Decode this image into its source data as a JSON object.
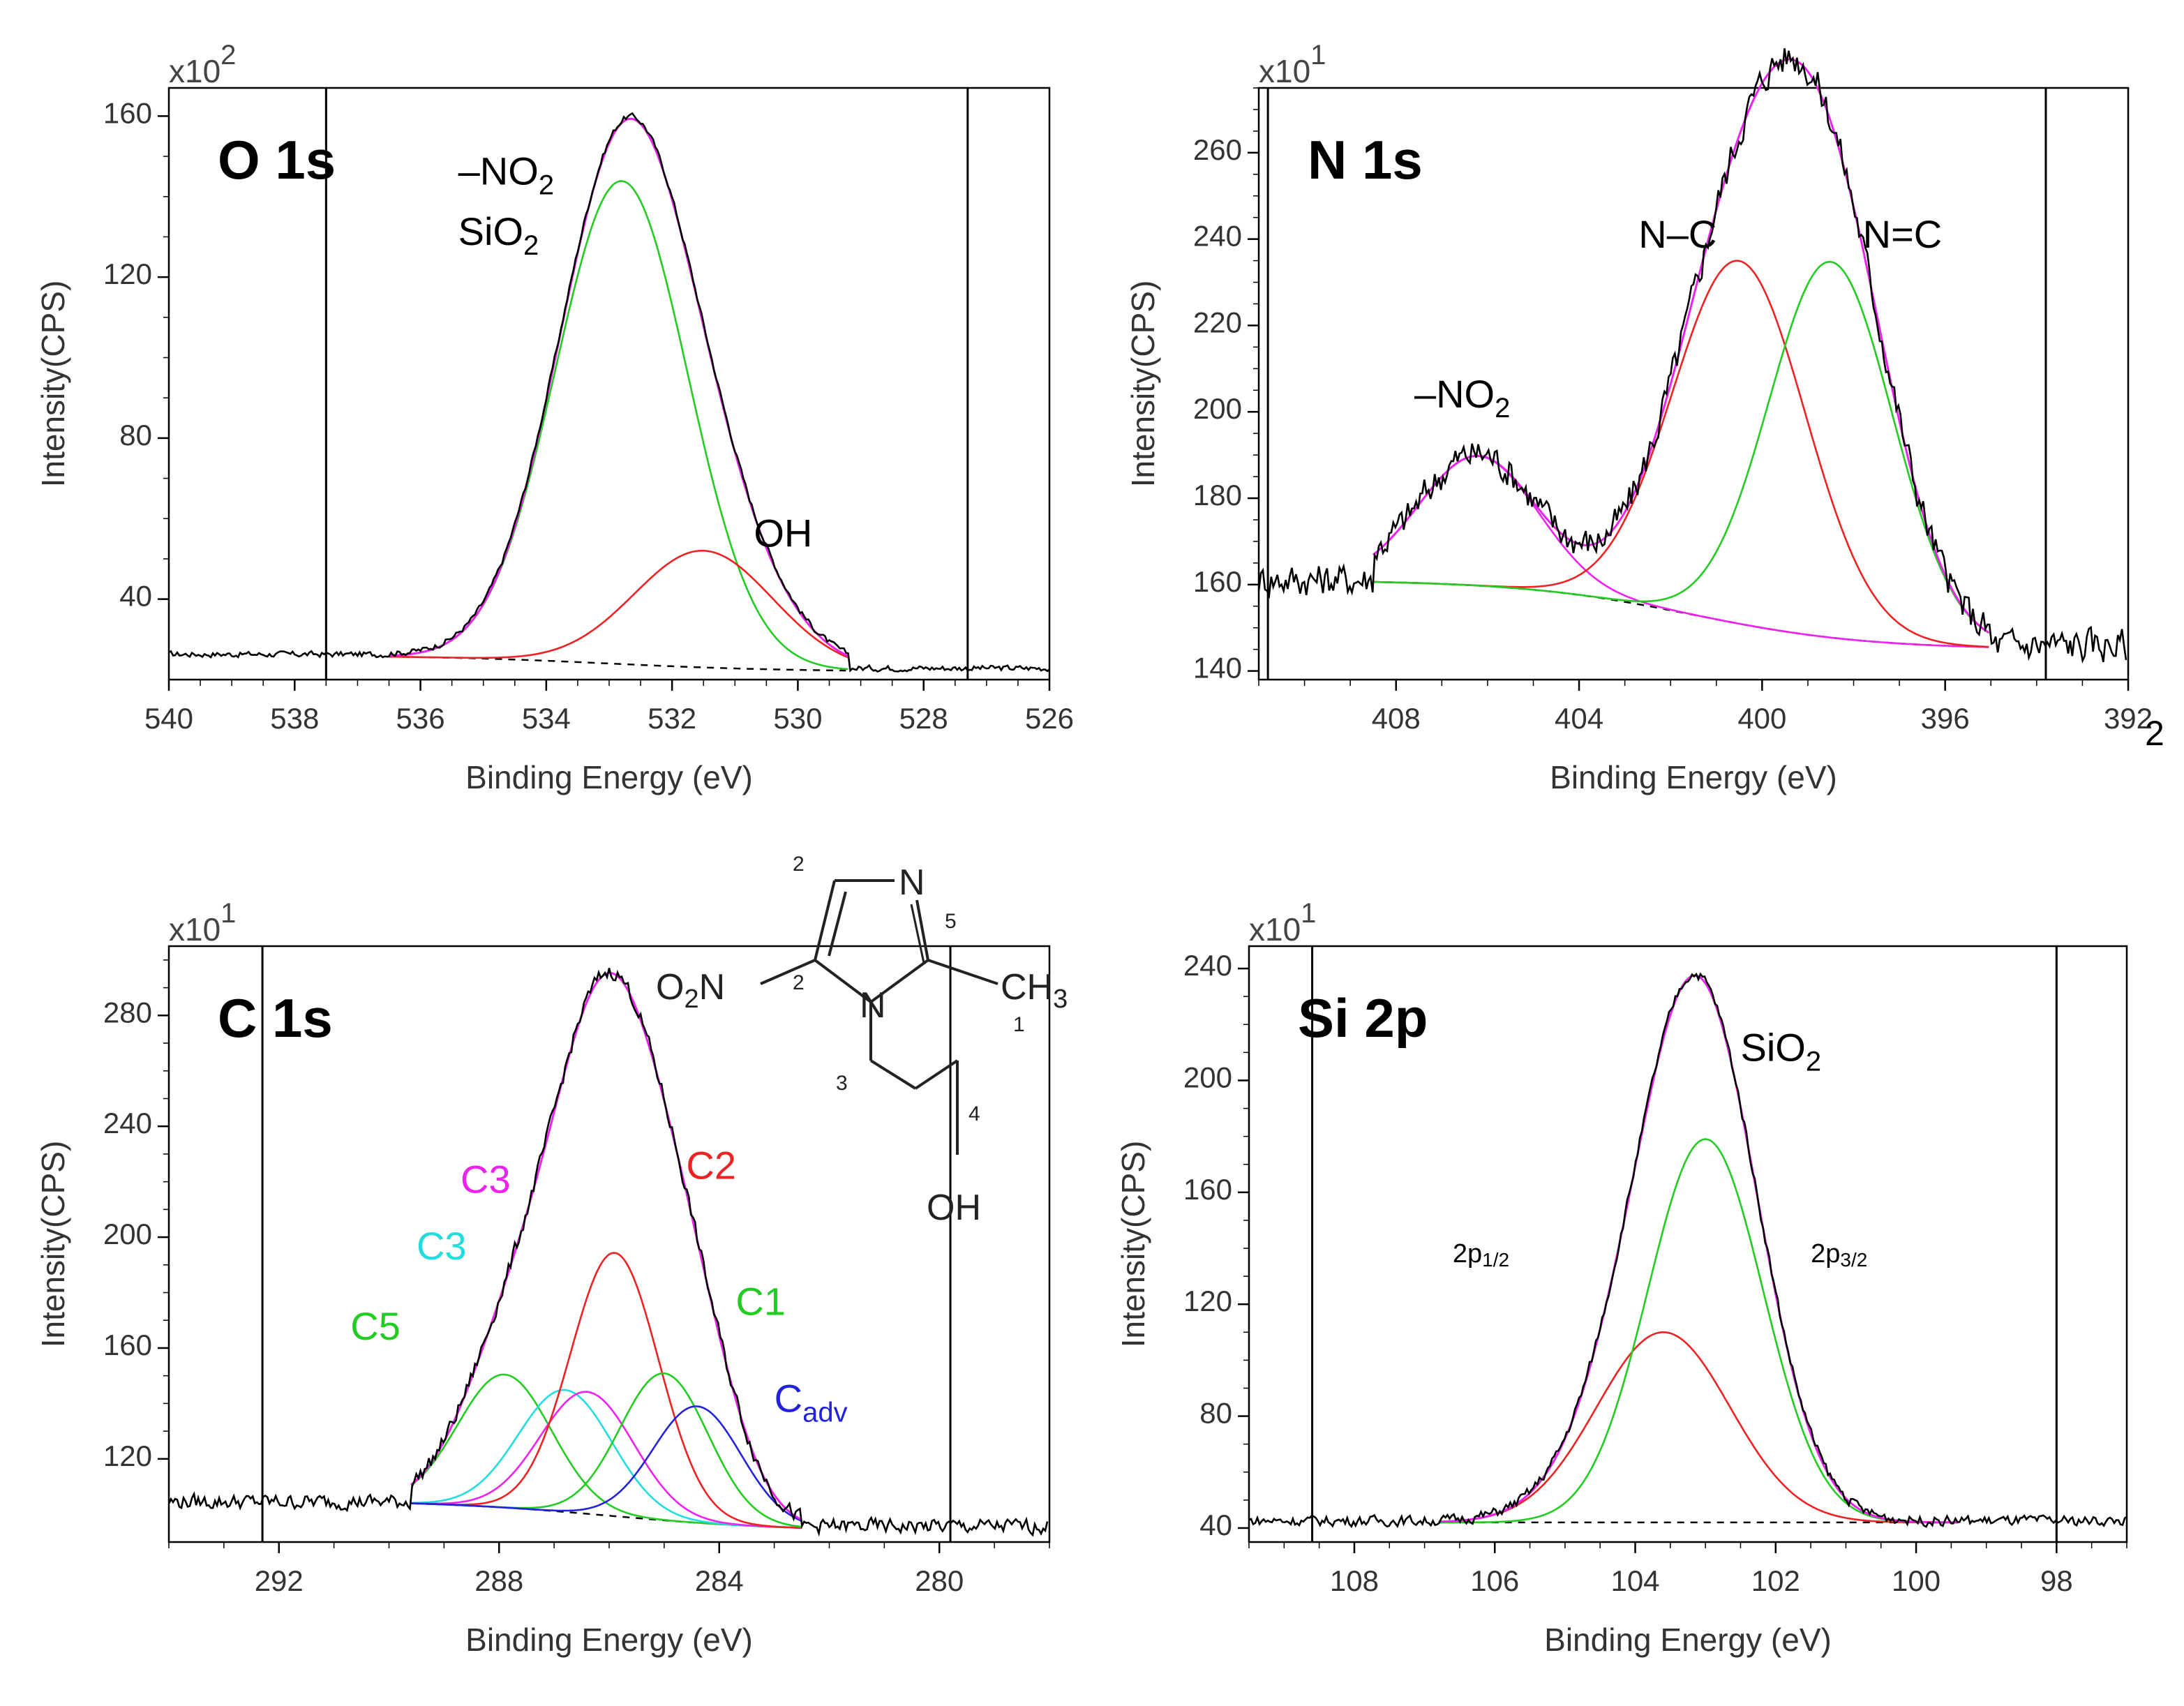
{
  "chart_data": [
    {
      "id": "o1s",
      "type": "line",
      "title": "O 1s",
      "xlabel": "Binding Energy (eV)",
      "ylabel": "Intensity(CPS)",
      "multiplier": "x10",
      "multiplier_exp": "2",
      "xlim": [
        540,
        526
      ],
      "ylim": [
        20,
        167
      ],
      "x_ticks": [
        540,
        538,
        536,
        534,
        532,
        530,
        528,
        526
      ],
      "y_ticks": [
        40,
        80,
        120,
        160
      ],
      "x_tick_labels": [
        "540",
        "538",
        "536",
        "534",
        "532",
        "530",
        "528",
        "526"
      ],
      "y_tick_labels": [
        "40",
        "80",
        "120",
        "160"
      ],
      "vlines": [
        537.5,
        527.3
      ],
      "background": {
        "start": 26,
        "end": 22
      },
      "envelope_color": "#ee22ee",
      "components": [
        {
          "center": 532.8,
          "height": 120,
          "sigma": 1.05,
          "color": "#22cc22"
        },
        {
          "center": 531.5,
          "height": 29,
          "sigma": 1.1,
          "color": "#ee2222"
        }
      ],
      "fit_range": [
        536.5,
        529.2
      ],
      "data_range": [
        540,
        526
      ],
      "noise": 0.6,
      "annotations": [
        {
          "text": "–NO",
          "sub": "2",
          "color": "#000000",
          "x": 535.4,
          "y": 143
        },
        {
          "text": "SiO",
          "sub": "2",
          "color": "#000000",
          "x": 535.4,
          "y": 128
        },
        {
          "text": "OH",
          "sub": "",
          "color": "#000000",
          "x": 530.7,
          "y": 53
        }
      ]
    },
    {
      "id": "n1s",
      "type": "line",
      "title": "N 1s",
      "xlabel": "Binding Energy (eV)",
      "ylabel": "Intensity(CPS)",
      "multiplier": "x10",
      "multiplier_exp": "1",
      "xlim": [
        411,
        392
      ],
      "ylim": [
        138,
        275
      ],
      "x_ticks": [
        408,
        404,
        400,
        396,
        392
      ],
      "y_ticks": [
        140,
        160,
        180,
        200,
        220,
        240,
        260
      ],
      "x_tick_labels": [
        "408",
        "404",
        "400",
        "396",
        "392"
      ],
      "y_tick_labels": [
        "140",
        "160",
        "180",
        "200",
        "220",
        "240",
        "260"
      ],
      "vlines": [
        410.8,
        393.8
      ],
      "background": {
        "start": 161,
        "end": 145
      },
      "envelope_color": "#ee22ee",
      "components": [
        {
          "center": 406.2,
          "height": 30,
          "sigma": 1.3,
          "color": "#ee22ee"
        },
        {
          "center": 400.5,
          "height": 84,
          "sigma": 1.45,
          "color": "#ee2222"
        },
        {
          "center": 398.5,
          "height": 87,
          "sigma": 1.35,
          "color": "#22cc22"
        }
      ],
      "fit_range": [
        408.5,
        395
      ],
      "data_range": [
        411,
        392
      ],
      "noise": 3.2,
      "annotations": [
        {
          "text": "–NO",
          "sub": "2",
          "color": "#000000",
          "x": 407.6,
          "y": 201
        },
        {
          "text": "N–C",
          "sub": "",
          "color": "#000000",
          "x": 402.7,
          "y": 238
        },
        {
          "text": "N=C",
          "sub": "",
          "color": "#000000",
          "x": 397.8,
          "y": 238
        }
      ]
    },
    {
      "id": "c1s",
      "type": "line",
      "title": "C 1s",
      "xlabel": "Binding Energy (eV)",
      "ylabel": "Intensity(CPS)",
      "multiplier": "x10",
      "multiplier_exp": "1",
      "xlim": [
        294,
        278
      ],
      "ylim": [
        90,
        305
      ],
      "x_ticks": [
        292,
        288,
        284,
        280
      ],
      "y_ticks": [
        120,
        160,
        200,
        240,
        280
      ],
      "x_tick_labels": [
        "292",
        "288",
        "284",
        "280"
      ],
      "y_tick_labels": [
        "120",
        "160",
        "200",
        "240",
        "280"
      ],
      "vlines": [
        292.3,
        279.8
      ],
      "background": {
        "start": 105,
        "end": 94
      },
      "envelope_color": "#ee22ee",
      "components": [
        {
          "center": 287.9,
          "height": 48,
          "sigma": 0.85,
          "color": "#22cc22"
        },
        {
          "center": 286.8,
          "height": 44,
          "sigma": 0.85,
          "color": "#22dddd"
        },
        {
          "center": 286.4,
          "height": 44,
          "sigma": 0.85,
          "color": "#ee22ee"
        },
        {
          "center": 285.9,
          "height": 95,
          "sigma": 0.8,
          "color": "#ee2222"
        },
        {
          "center": 285.0,
          "height": 53,
          "sigma": 0.8,
          "color": "#22cc22"
        },
        {
          "center": 284.4,
          "height": 42,
          "sigma": 0.8,
          "color": "#2222dd"
        }
      ],
      "fit_range": [
        289.6,
        282.5
      ],
      "data_range": [
        294,
        278
      ],
      "noise": 2.2,
      "annotations": [
        {
          "text": "C3",
          "sub": "",
          "color": "#ee22ee",
          "x": 288.7,
          "y": 216
        },
        {
          "text": "C2",
          "sub": "",
          "color": "#ee2222",
          "x": 284.6,
          "y": 221
        },
        {
          "text": "C3",
          "sub": "",
          "color": "#22dddd",
          "x": 289.5,
          "y": 192
        },
        {
          "text": "C1",
          "sub": "",
          "color": "#22cc22",
          "x": 283.7,
          "y": 172
        },
        {
          "text": "C5",
          "sub": "",
          "color": "#22cc22",
          "x": 290.7,
          "y": 163
        },
        {
          "text": "C",
          "sub": "adv",
          "color": "#2222dd",
          "x": 283.0,
          "y": 137
        }
      ],
      "molecule": {
        "formula_left": "O",
        "formula_left_sub": "2",
        "formula_left_tail": "N",
        "ring_n1": "N",
        "ring_n3": "N",
        "methyl": "CH",
        "methyl_sub": "3",
        "hydroxyl": "OH",
        "numbers": [
          "2",
          "5",
          "2",
          "1",
          "3",
          "4"
        ]
      }
    },
    {
      "id": "si2p",
      "type": "line",
      "title": "Si 2p",
      "xlabel": "Binding Energy (eV)",
      "ylabel": "Intensity(CPS)",
      "multiplier": "x10",
      "multiplier_exp": "1",
      "xlim": [
        109.5,
        97
      ],
      "ylim": [
        35,
        248
      ],
      "x_ticks": [
        108,
        106,
        104,
        102,
        100,
        98
      ],
      "y_ticks": [
        40,
        80,
        120,
        160,
        200,
        240
      ],
      "x_tick_labels": [
        "108",
        "106",
        "104",
        "102",
        "100",
        "98"
      ],
      "y_tick_labels": [
        "40",
        "80",
        "120",
        "160",
        "200",
        "240"
      ],
      "vlines": [
        108.6,
        98.0
      ],
      "background": {
        "start": 42,
        "end": 42
      },
      "envelope_color": "#ee22ee",
      "components": [
        {
          "center": 103.6,
          "height": 68,
          "sigma": 0.95,
          "color": "#ee2222"
        },
        {
          "center": 103.0,
          "height": 137,
          "sigma": 0.82,
          "color": "#22cc22"
        }
      ],
      "fit_range": [
        106.8,
        99.4
      ],
      "data_range": [
        109.5,
        97
      ],
      "noise": 1.5,
      "annotations": [
        {
          "text": "SiO",
          "sub": "2",
          "color": "#000000",
          "x": 102.5,
          "y": 207
        },
        {
          "text": "2p",
          "sub": "1/2",
          "color": "#000000",
          "x": 106.6,
          "y": 135,
          "small": true
        },
        {
          "text": "2p",
          "sub": "3/2",
          "color": "#000000",
          "x": 101.5,
          "y": 135,
          "small": true
        }
      ]
    }
  ],
  "extra_label": {
    "text": "2"
  }
}
